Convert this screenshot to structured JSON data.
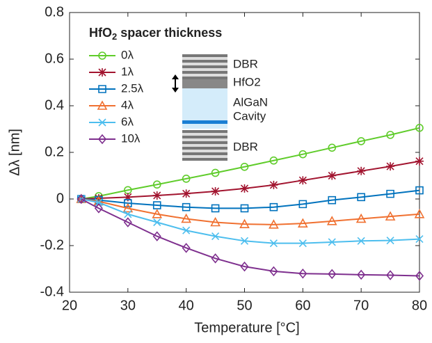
{
  "chart_data": {
    "type": "line",
    "xlabel": "Temperature [°C]",
    "ylabel": "Δλ [nm]",
    "legend_title": {
      "main": "HfO",
      "sub": "2",
      "rest": " spacer thickness"
    },
    "legend_position": "upper left",
    "x": [
      22,
      25,
      30,
      35,
      40,
      45,
      50,
      55,
      60,
      65,
      70,
      75,
      80
    ],
    "xlim": [
      20,
      80
    ],
    "xticks": [
      20,
      30,
      40,
      50,
      60,
      70,
      80
    ],
    "ylim": [
      -0.4,
      0.8
    ],
    "yticks": [
      -0.4,
      -0.2,
      0,
      0.2,
      0.4,
      0.6,
      0.8
    ],
    "series": [
      {
        "name": "0λ",
        "color": "#5fcc2a",
        "marker": "circle",
        "values": [
          0,
          0.012,
          0.038,
          0.062,
          0.087,
          0.112,
          0.138,
          0.165,
          0.192,
          0.22,
          0.248,
          0.275,
          0.305
        ]
      },
      {
        "name": "1λ",
        "color": "#a2142f",
        "marker": "asterisk",
        "values": [
          0,
          0.003,
          0.008,
          0.015,
          0.023,
          0.033,
          0.045,
          0.06,
          0.08,
          0.1,
          0.12,
          0.14,
          0.162
        ]
      },
      {
        "name": "2.5λ",
        "color": "#0072bd",
        "marker": "square",
        "values": [
          0,
          -0.005,
          -0.018,
          -0.027,
          -0.035,
          -0.04,
          -0.04,
          -0.035,
          -0.022,
          -0.005,
          0.008,
          0.022,
          0.037
        ]
      },
      {
        "name": "4λ",
        "color": "#f07030",
        "marker": "triangle",
        "values": [
          0,
          -0.01,
          -0.04,
          -0.065,
          -0.085,
          -0.1,
          -0.108,
          -0.11,
          -0.105,
          -0.095,
          -0.085,
          -0.075,
          -0.065
        ]
      },
      {
        "name": "6λ",
        "color": "#4dbeee",
        "marker": "x",
        "values": [
          0,
          -0.015,
          -0.065,
          -0.1,
          -0.135,
          -0.16,
          -0.18,
          -0.19,
          -0.19,
          -0.185,
          -0.18,
          -0.178,
          -0.172
        ]
      },
      {
        "name": "10λ",
        "color": "#7e2f8e",
        "marker": "diamond",
        "values": [
          0,
          -0.04,
          -0.1,
          -0.16,
          -0.21,
          -0.255,
          -0.29,
          -0.31,
          -0.32,
          -0.322,
          -0.325,
          -0.327,
          -0.33
        ]
      }
    ],
    "inset": {
      "top": "DBR",
      "spacer": "HfO2",
      "cavity_1": "AlGaN",
      "cavity_2": "Cavity",
      "bottom": "DBR"
    }
  }
}
